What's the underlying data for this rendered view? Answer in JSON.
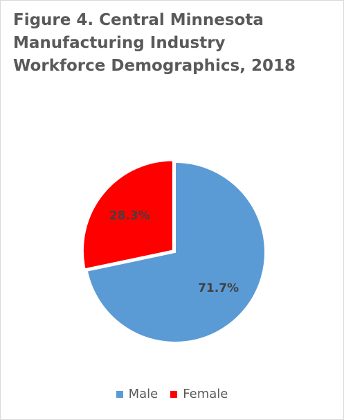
{
  "chart_data": {
    "type": "pie",
    "title": "Figure 4. Central Minnesota Manufacturing Industry Workforce Demographics, 2018",
    "categories": [
      "Male",
      "Female"
    ],
    "values": [
      71.7,
      28.3
    ],
    "labels": [
      "71.7%",
      "28.3%"
    ],
    "colors": [
      "#5b9bd5",
      "#ff0000"
    ],
    "label_color": "#404040",
    "legend_position": "bottom",
    "exploded": "Female"
  }
}
